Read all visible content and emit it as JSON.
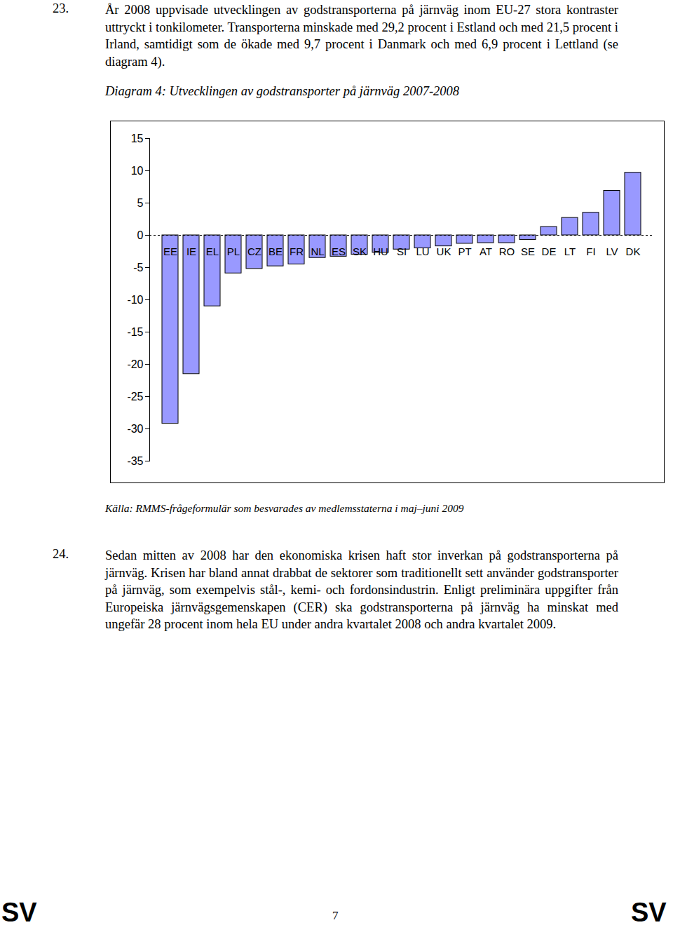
{
  "page": {
    "section_1": {
      "number": "23.",
      "text": "År 2008 uppvisade utvecklingen av godstransporterna på järnväg inom EU-27 stora kontraster uttryckt i tonkilometer. Transporterna minskade med 29,2 procent i Estland och med 21,5 procent i Irland, samtidigt som de ökade med 9,7 procent i Danmark och med 6,9 procent i Lettland (se diagram 4)."
    },
    "source": "Källa: RMMS-frågeformulär som besvarades av medlemsstaterna i maj–juni 2009",
    "section_2": {
      "number": "24.",
      "text": "Sedan mitten av 2008 har den ekonomiska krisen haft stor inverkan på godstransporterna på järnväg. Krisen har bland annat drabbat de sektorer som traditionellt sett använder godstransporter på järnväg, som exempelvis stål-, kemi- och fordonsindustrin. Enligt preliminära uppgifter från Europeiska järnvägsgemenskapen (CER) ska godstransporterna på järnväg ha minskat med ungefär 28 procent inom hela EU under andra kvartalet 2008 och andra kvartalet 2009."
    },
    "footer": {
      "left": "SV",
      "page": "7",
      "right": "SV"
    }
  },
  "chart_data": {
    "type": "bar",
    "title": "Diagram 4: Utvecklingen av godstransporter på järnväg 2007-2008",
    "categories": [
      "EE",
      "IE",
      "EL",
      "PL",
      "CZ",
      "BE",
      "FR",
      "NL",
      "ES",
      "SK",
      "HU",
      "SI",
      "LU",
      "UK",
      "PT",
      "AT",
      "RO",
      "SE",
      "DE",
      "LT",
      "FI",
      "LV",
      "DK"
    ],
    "values": [
      -29.2,
      -21.5,
      -11,
      -5.9,
      -5.2,
      -4.8,
      -4.5,
      -3.5,
      -3.3,
      -3,
      -2.7,
      -2.2,
      -2,
      -1.7,
      -1.3,
      -1.2,
      -1.2,
      -0.7,
      1.3,
      2.7,
      3.5,
      6.9,
      9.7
    ],
    "color": "#9999ff",
    "ylim": [
      -35,
      15
    ],
    "yticks": [
      -35,
      -30,
      -25,
      -20,
      -15,
      -10,
      -5,
      0,
      5,
      10,
      15
    ],
    "grid": false
  }
}
